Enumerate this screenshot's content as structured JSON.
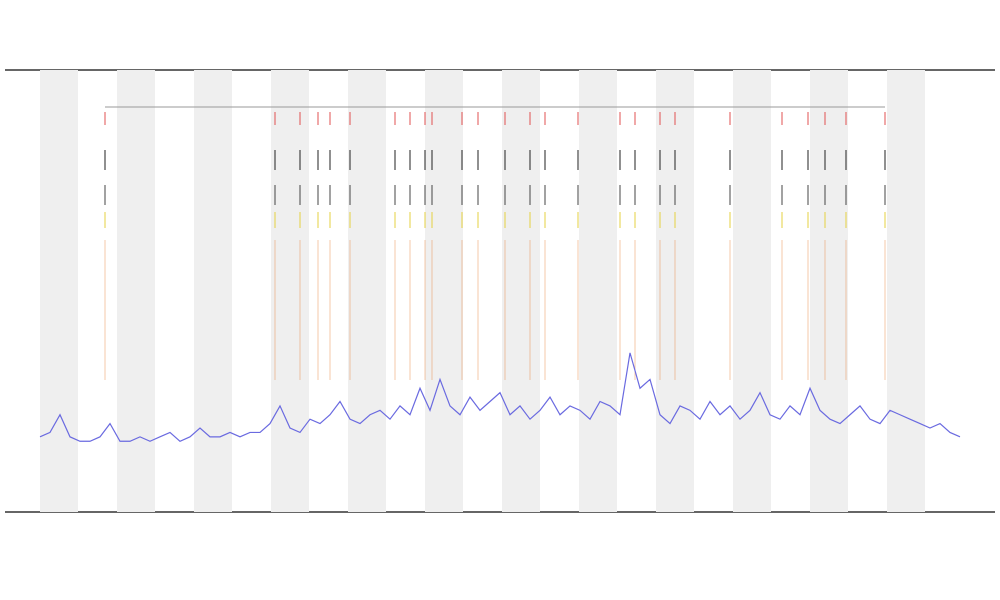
{
  "chart_data": {
    "type": "line",
    "series": [
      {
        "color": "#6a6ae0",
        "x": [
          0,
          1,
          2,
          3,
          4,
          5,
          6,
          7,
          8,
          9,
          10,
          11,
          12,
          13,
          14,
          15,
          16,
          17,
          18,
          19,
          20,
          21,
          22,
          23,
          24,
          25,
          26,
          27,
          28,
          29,
          30,
          31,
          32,
          33,
          34,
          35,
          36,
          37,
          38,
          39,
          40,
          41,
          42,
          43,
          44,
          45,
          46,
          47,
          48,
          49,
          50,
          51,
          52,
          53,
          54,
          55,
          56,
          57,
          58,
          59,
          60,
          61,
          62,
          63,
          64,
          65,
          66,
          67,
          68,
          69,
          70,
          71,
          72,
          73,
          74,
          75,
          76,
          77,
          78,
          79,
          80,
          81,
          82,
          83,
          84,
          85,
          86,
          87,
          88,
          89,
          90,
          91,
          92
        ],
        "values": [
          17,
          18,
          22,
          17,
          16,
          16,
          17,
          20,
          16,
          16,
          17,
          16,
          17,
          18,
          16,
          17,
          19,
          17,
          17,
          18,
          17,
          18,
          18,
          20,
          24,
          19,
          18,
          21,
          20,
          22,
          25,
          21,
          20,
          22,
          23,
          21,
          24,
          22,
          28,
          23,
          30,
          24,
          22,
          26,
          23,
          25,
          27,
          22,
          24,
          21,
          23,
          26,
          22,
          24,
          23,
          21,
          25,
          24,
          22,
          36,
          28,
          30,
          22,
          20,
          24,
          23,
          21,
          25,
          22,
          24,
          21,
          23,
          27,
          22,
          21,
          24,
          22,
          28,
          23,
          21,
          20,
          22,
          24,
          21,
          20,
          23,
          22,
          21,
          20,
          19,
          20,
          18,
          17
        ]
      }
    ],
    "events": {
      "x": [
        6.5,
        23.5,
        26,
        27.8,
        29,
        31,
        35.5,
        37,
        38.5,
        39.2,
        42.2,
        43.8,
        46.5,
        49,
        50.5,
        53.8,
        58,
        59.5,
        62,
        63.5,
        69,
        74.2,
        76.8,
        78.5,
        80.6,
        84.5
      ]
    },
    "xlim": [
      0,
      92
    ],
    "ylim": [
      0,
      100
    ]
  }
}
